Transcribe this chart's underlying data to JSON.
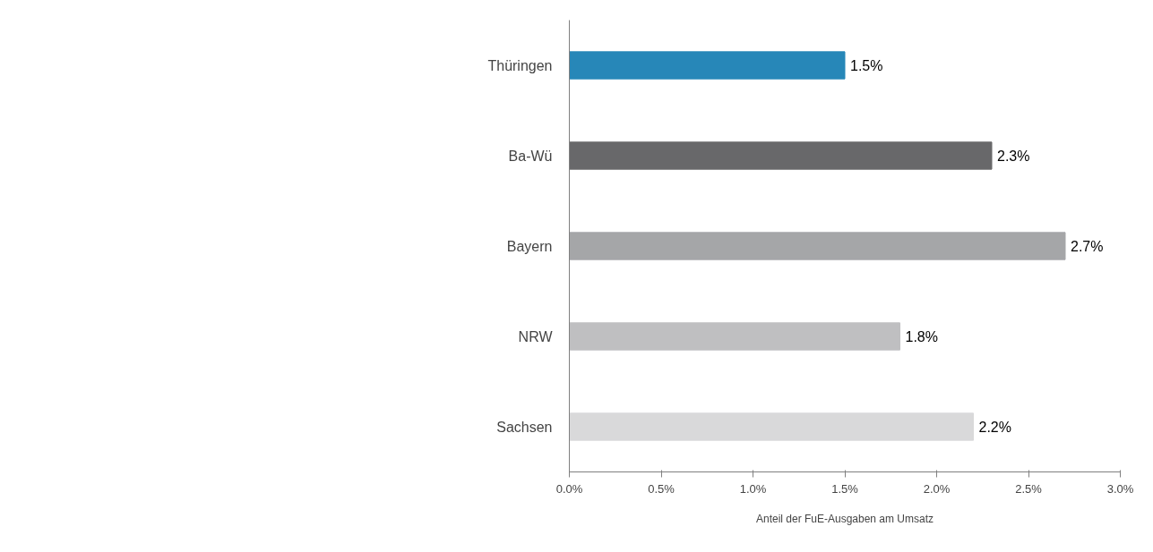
{
  "chart_data": {
    "type": "bar",
    "orientation": "horizontal",
    "xlabel": "Anteil der FuE-Ausgaben am Umsatz",
    "categories": [
      "Thüringen",
      "Ba-Wü",
      "Bayern",
      "NRW",
      "Sachsen"
    ],
    "values": [
      1.5,
      2.3,
      2.7,
      1.8,
      2.2
    ],
    "colors": [
      "#2787b8",
      "#68686a",
      "#a5a6a8",
      "#bfbfc1",
      "#d9d9da"
    ],
    "value_labels": [
      "1.5%",
      "2.3%",
      "2.7%",
      "1.8%",
      "2.2%"
    ],
    "xlim": [
      0,
      3
    ],
    "xticks": [
      {
        "value": 0,
        "label": "0.0%"
      },
      {
        "value": 0.5,
        "label": "0.5%"
      },
      {
        "value": 1,
        "label": "1.0%"
      },
      {
        "value": 1.5,
        "label": "1.5%"
      },
      {
        "value": 2,
        "label": "2.0%"
      },
      {
        "value": 2.5,
        "label": "2.5%"
      },
      {
        "value": 3,
        "label": "3.0%"
      }
    ],
    "grid": false
  }
}
